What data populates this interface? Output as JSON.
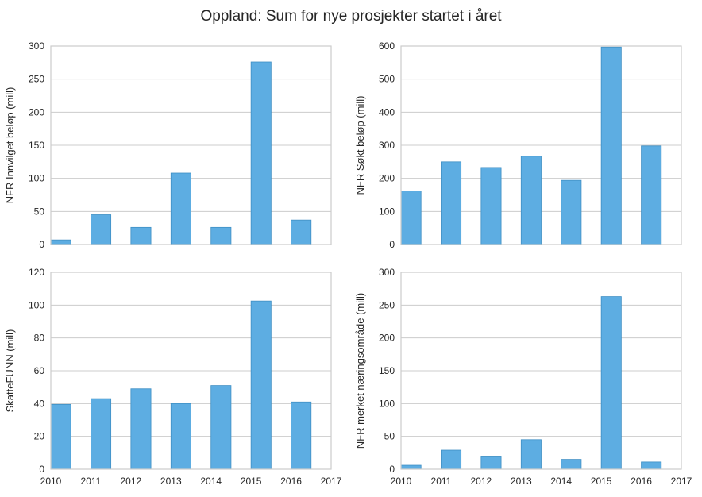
{
  "figure": {
    "title": "Oppland: Sum for nye prosjekter startet i året"
  },
  "chart_data": [
    {
      "type": "bar",
      "ylabel": "NFR Innvilget beløp (mill)",
      "x": [
        2010,
        2011,
        2012,
        2013,
        2014,
        2015,
        2016
      ],
      "values": [
        7,
        45,
        26,
        108,
        26,
        276,
        37
      ],
      "ylim": [
        0,
        300
      ],
      "yticks": [
        0,
        50,
        100,
        150,
        200,
        250,
        300
      ],
      "xlim": [
        2010,
        2017
      ],
      "xticks": [],
      "grid": true,
      "color": "#5dade2"
    },
    {
      "type": "bar",
      "ylabel": "NFR Søkt beløp (mill)",
      "x": [
        2010,
        2011,
        2012,
        2013,
        2014,
        2015,
        2016
      ],
      "values": [
        162,
        250,
        233,
        267,
        194,
        597,
        298
      ],
      "ylim": [
        0,
        600
      ],
      "yticks": [
        0,
        100,
        200,
        300,
        400,
        500,
        600
      ],
      "xlim": [
        2010,
        2017
      ],
      "xticks": [],
      "grid": true,
      "color": "#5dade2"
    },
    {
      "type": "bar",
      "ylabel": "SkatteFUNN (mill)",
      "x": [
        2010,
        2011,
        2012,
        2013,
        2014,
        2015,
        2016
      ],
      "values": [
        39.5,
        43,
        49,
        40,
        51,
        102.5,
        41
      ],
      "ylim": [
        0,
        120
      ],
      "yticks": [
        0,
        20,
        40,
        60,
        80,
        100,
        120
      ],
      "xlim": [
        2010,
        2017
      ],
      "xticks": [
        2010,
        2011,
        2012,
        2013,
        2014,
        2015,
        2016,
        2017
      ],
      "grid": true,
      "color": "#5dade2"
    },
    {
      "type": "bar",
      "ylabel": "NFR merket næringsområde (mill)",
      "x": [
        2010,
        2011,
        2012,
        2013,
        2014,
        2015,
        2016
      ],
      "values": [
        6,
        29,
        20,
        45,
        15,
        263,
        11
      ],
      "ylim": [
        0,
        300
      ],
      "yticks": [
        0,
        50,
        100,
        150,
        200,
        250,
        300
      ],
      "xlim": [
        2010,
        2017
      ],
      "xticks": [
        2010,
        2011,
        2012,
        2013,
        2014,
        2015,
        2016,
        2017
      ],
      "grid": true,
      "color": "#5dade2"
    }
  ]
}
